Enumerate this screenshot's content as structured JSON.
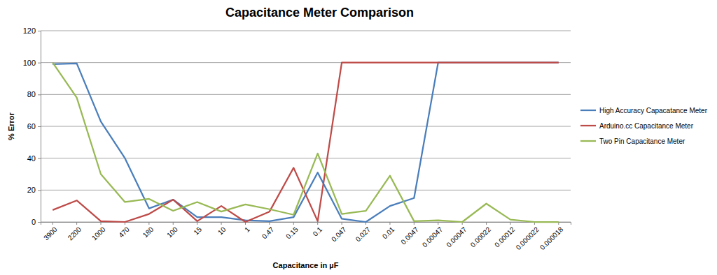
{
  "chart_data": {
    "type": "line",
    "title": "Capacitance Meter Comparison",
    "x_label": "Capacitance in µF",
    "y_label": "% Error",
    "categories": [
      "3900",
      "2200",
      "1000",
      "470",
      "180",
      "100",
      "15",
      "10",
      "1",
      "0.47",
      "0.15",
      "0.1",
      "0.047",
      "0.027",
      "0.01",
      "0.0047",
      "0.00047",
      "0.00047",
      "0.00022",
      "0.00012",
      "0.000022",
      "0.000018"
    ],
    "series": [
      {
        "name": "High Accuracy Capacatance Meter",
        "color": "#4a7ebb",
        "values": [
          99,
          99.5,
          63,
          40,
          8.5,
          14,
          3,
          3,
          1,
          0.5,
          3,
          31,
          2,
          0,
          10,
          15,
          100,
          100,
          100,
          100,
          100,
          100
        ]
      },
      {
        "name": "Arduino.cc Capacitance Meter",
        "color": "#be4b48",
        "values": [
          7.5,
          13.5,
          0.5,
          0,
          5,
          14,
          0.5,
          10,
          0,
          6.5,
          34,
          0.5,
          100,
          100,
          100,
          100,
          100,
          100,
          100,
          100,
          100,
          100
        ]
      },
      {
        "name": "Two Pin Capacitance Meter",
        "color": "#98b954",
        "values": [
          100,
          78,
          30,
          12.5,
          14.5,
          7,
          12.5,
          6.5,
          11,
          8,
          4.5,
          43,
          5,
          7,
          29,
          0.5,
          1,
          0,
          11.5,
          1.5,
          0,
          0
        ]
      }
    ],
    "ylim": [
      0,
      120
    ],
    "yticks": [
      0,
      20,
      40,
      60,
      80,
      100,
      120
    ],
    "grid": true,
    "legend": "right"
  }
}
